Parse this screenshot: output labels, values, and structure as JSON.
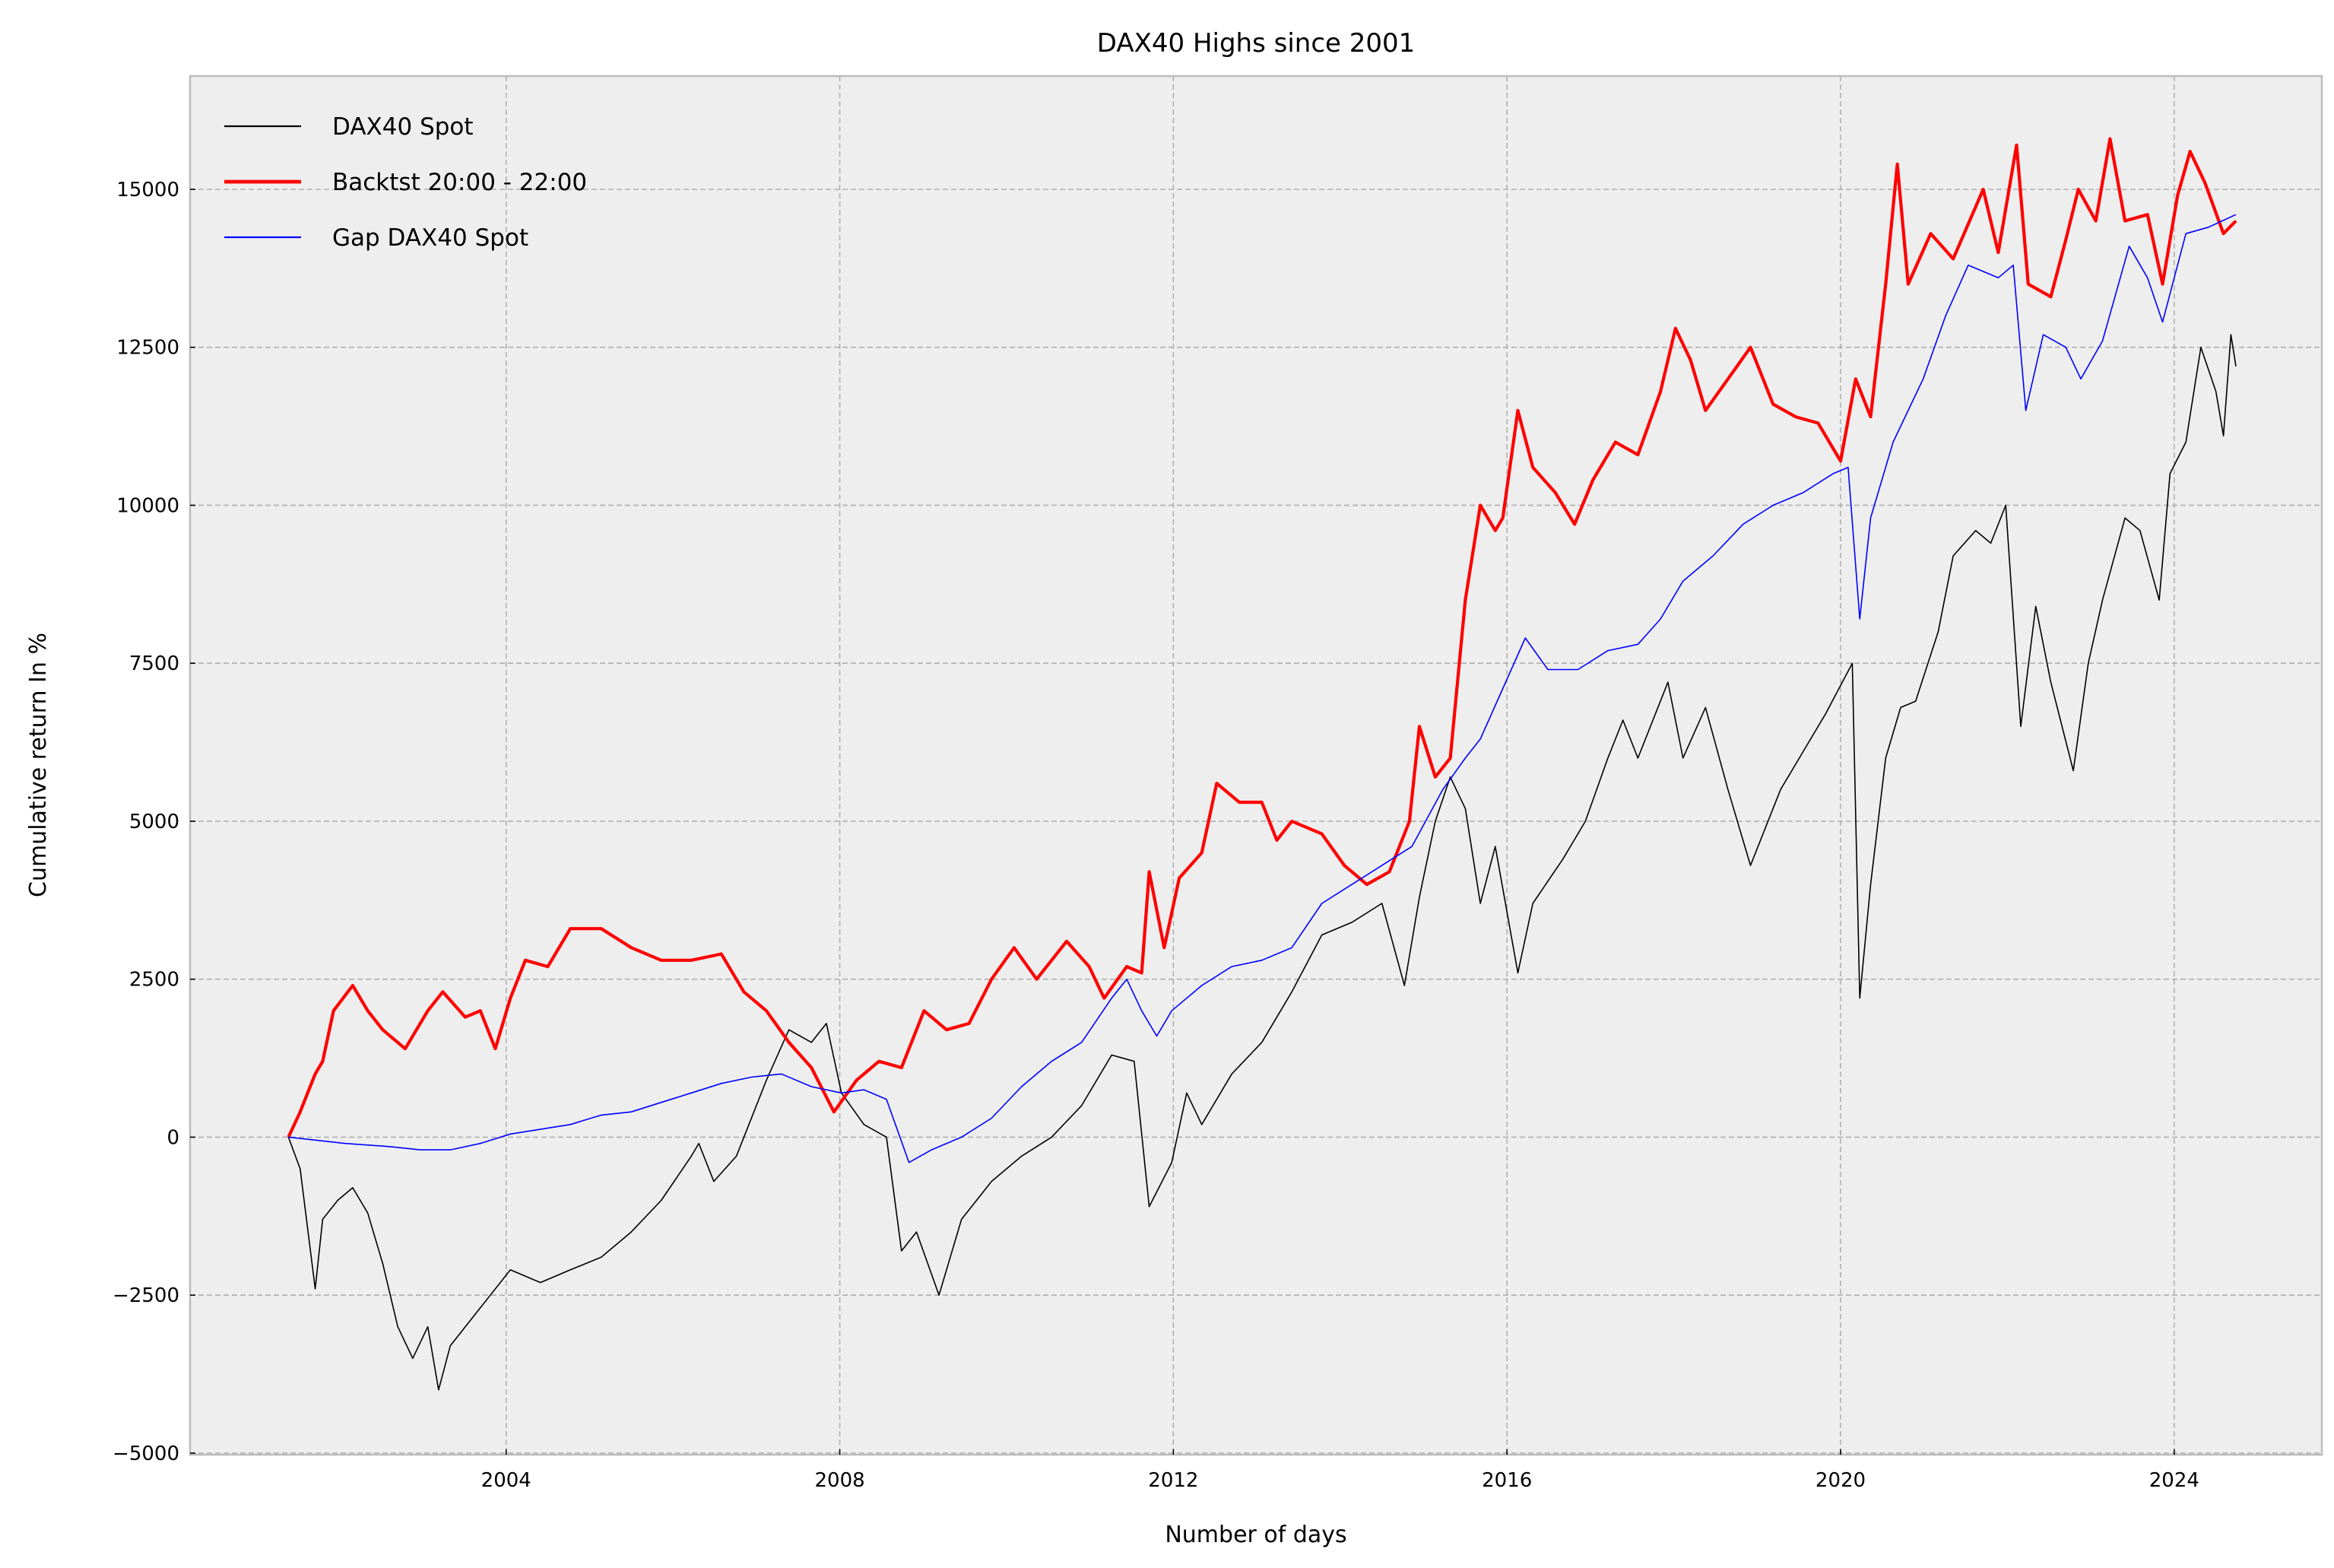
{
  "chart_data": {
    "type": "line",
    "title": "DAX40 Highs since 2001",
    "xlabel": "Number of days",
    "ylabel": "Cumulative return In %",
    "xlim": [
      2000.21,
      2025.77
    ],
    "ylim": [
      -5025,
      16793
    ],
    "xticks": [
      2004,
      2008,
      2012,
      2016,
      2020,
      2024
    ],
    "xtick_labels": [
      "2004",
      "2008",
      "2012",
      "2016",
      "2020",
      "2024"
    ],
    "yticks": [
      -5000,
      -2500,
      0,
      2500,
      5000,
      7500,
      10000,
      12500,
      15000
    ],
    "ytick_labels": [
      "−5000",
      "−2500",
      "0",
      "2500",
      "5000",
      "7500",
      "10000",
      "12500",
      "15000"
    ],
    "grid": true,
    "legend_position": "top-left",
    "series": [
      {
        "name": "DAX40 Spot",
        "color": "#000000",
        "points": [
          [
            2001.39,
            0
          ],
          [
            2001.53,
            -500
          ],
          [
            2001.71,
            -2400
          ],
          [
            2001.8,
            -1300
          ],
          [
            2001.98,
            -1000
          ],
          [
            2002.16,
            -800
          ],
          [
            2002.34,
            -1200
          ],
          [
            2002.52,
            -2000
          ],
          [
            2002.7,
            -3000
          ],
          [
            2002.88,
            -3500
          ],
          [
            2003.06,
            -3000
          ],
          [
            2003.19,
            -4000
          ],
          [
            2003.33,
            -3300
          ],
          [
            2003.69,
            -2700
          ],
          [
            2004.05,
            -2100
          ],
          [
            2004.41,
            -2300
          ],
          [
            2004.77,
            -2100
          ],
          [
            2005.14,
            -1900
          ],
          [
            2005.5,
            -1500
          ],
          [
            2005.86,
            -1000
          ],
          [
            2006.22,
            -300
          ],
          [
            2006.31,
            -100
          ],
          [
            2006.49,
            -700
          ],
          [
            2006.76,
            -300
          ],
          [
            2007.12,
            900
          ],
          [
            2007.39,
            1700
          ],
          [
            2007.66,
            1500
          ],
          [
            2007.84,
            1800
          ],
          [
            2008.02,
            700
          ],
          [
            2008.29,
            200
          ],
          [
            2008.56,
            0
          ],
          [
            2008.74,
            -1800
          ],
          [
            2008.92,
            -1500
          ],
          [
            2009.19,
            -2500
          ],
          [
            2009.46,
            -1300
          ],
          [
            2009.82,
            -700
          ],
          [
            2010.18,
            -300
          ],
          [
            2010.54,
            0
          ],
          [
            2010.9,
            500
          ],
          [
            2011.26,
            1300
          ],
          [
            2011.53,
            1200
          ],
          [
            2011.71,
            -1100
          ],
          [
            2011.98,
            -400
          ],
          [
            2012.16,
            700
          ],
          [
            2012.34,
            200
          ],
          [
            2012.7,
            1000
          ],
          [
            2013.06,
            1500
          ],
          [
            2013.42,
            2300
          ],
          [
            2013.78,
            3200
          ],
          [
            2014.14,
            3400
          ],
          [
            2014.5,
            3700
          ],
          [
            2014.77,
            2400
          ],
          [
            2014.95,
            3800
          ],
          [
            2015.14,
            5000
          ],
          [
            2015.32,
            5700
          ],
          [
            2015.5,
            5200
          ],
          [
            2015.68,
            3700
          ],
          [
            2015.86,
            4600
          ],
          [
            2016.13,
            2600
          ],
          [
            2016.31,
            3700
          ],
          [
            2016.67,
            4400
          ],
          [
            2016.94,
            5000
          ],
          [
            2017.21,
            6000
          ],
          [
            2017.39,
            6600
          ],
          [
            2017.57,
            6000
          ],
          [
            2017.93,
            7200
          ],
          [
            2018.11,
            6000
          ],
          [
            2018.38,
            6800
          ],
          [
            2018.65,
            5500
          ],
          [
            2018.92,
            4300
          ],
          [
            2019.28,
            5500
          ],
          [
            2019.55,
            6100
          ],
          [
            2019.82,
            6700
          ],
          [
            2020.14,
            7500
          ],
          [
            2020.23,
            2200
          ],
          [
            2020.36,
            4000
          ],
          [
            2020.54,
            6000
          ],
          [
            2020.72,
            6800
          ],
          [
            2020.9,
            6900
          ],
          [
            2021.17,
            8000
          ],
          [
            2021.35,
            9200
          ],
          [
            2021.62,
            9600
          ],
          [
            2021.8,
            9400
          ],
          [
            2021.98,
            10000
          ],
          [
            2022.16,
            6500
          ],
          [
            2022.34,
            8400
          ],
          [
            2022.52,
            7200
          ],
          [
            2022.79,
            5800
          ],
          [
            2022.97,
            7500
          ],
          [
            2023.14,
            8500
          ],
          [
            2023.41,
            9800
          ],
          [
            2023.59,
            9600
          ],
          [
            2023.82,
            8500
          ],
          [
            2023.95,
            10500
          ],
          [
            2024.14,
            11000
          ],
          [
            2024.32,
            12500
          ],
          [
            2024.5,
            11800
          ],
          [
            2024.59,
            11100
          ],
          [
            2024.68,
            12700
          ],
          [
            2024.74,
            12200
          ]
        ]
      },
      {
        "name": "Backtst 20:00 - 22:00",
        "color": "#ff0000",
        "points": [
          [
            2001.39,
            0
          ],
          [
            2001.53,
            400
          ],
          [
            2001.71,
            1000
          ],
          [
            2001.8,
            1200
          ],
          [
            2001.93,
            2000
          ],
          [
            2002.16,
            2400
          ],
          [
            2002.34,
            2000
          ],
          [
            2002.52,
            1700
          ],
          [
            2002.79,
            1400
          ],
          [
            2003.06,
            2000
          ],
          [
            2003.24,
            2300
          ],
          [
            2003.51,
            1900
          ],
          [
            2003.69,
            2000
          ],
          [
            2003.87,
            1400
          ],
          [
            2004.05,
            2200
          ],
          [
            2004.23,
            2800
          ],
          [
            2004.5,
            2700
          ],
          [
            2004.77,
            3300
          ],
          [
            2005.14,
            3300
          ],
          [
            2005.5,
            3000
          ],
          [
            2005.86,
            2800
          ],
          [
            2006.22,
            2800
          ],
          [
            2006.58,
            2900
          ],
          [
            2006.85,
            2300
          ],
          [
            2007.12,
            2000
          ],
          [
            2007.39,
            1500
          ],
          [
            2007.66,
            1100
          ],
          [
            2007.93,
            400
          ],
          [
            2008.2,
            900
          ],
          [
            2008.47,
            1200
          ],
          [
            2008.74,
            1100
          ],
          [
            2009.01,
            2000
          ],
          [
            2009.28,
            1700
          ],
          [
            2009.55,
            1800
          ],
          [
            2009.82,
            2500
          ],
          [
            2010.09,
            3000
          ],
          [
            2010.36,
            2500
          ],
          [
            2010.72,
            3100
          ],
          [
            2010.99,
            2700
          ],
          [
            2011.17,
            2200
          ],
          [
            2011.44,
            2700
          ],
          [
            2011.62,
            2600
          ],
          [
            2011.71,
            4200
          ],
          [
            2011.89,
            3000
          ],
          [
            2012.07,
            4100
          ],
          [
            2012.34,
            4500
          ],
          [
            2012.52,
            5600
          ],
          [
            2012.79,
            5300
          ],
          [
            2013.06,
            5300
          ],
          [
            2013.24,
            4700
          ],
          [
            2013.42,
            5000
          ],
          [
            2013.78,
            4800
          ],
          [
            2014.05,
            4300
          ],
          [
            2014.32,
            4000
          ],
          [
            2014.59,
            4200
          ],
          [
            2014.83,
            5000
          ],
          [
            2014.95,
            6500
          ],
          [
            2015.14,
            5700
          ],
          [
            2015.32,
            6000
          ],
          [
            2015.5,
            8500
          ],
          [
            2015.68,
            10000
          ],
          [
            2015.86,
            9600
          ],
          [
            2015.95,
            9800
          ],
          [
            2016.13,
            11500
          ],
          [
            2016.31,
            10600
          ],
          [
            2016.58,
            10200
          ],
          [
            2016.81,
            9700
          ],
          [
            2017.03,
            10400
          ],
          [
            2017.3,
            11000
          ],
          [
            2017.57,
            10800
          ],
          [
            2017.84,
            11800
          ],
          [
            2018.02,
            12800
          ],
          [
            2018.2,
            12300
          ],
          [
            2018.38,
            11500
          ],
          [
            2018.65,
            12000
          ],
          [
            2018.92,
            12500
          ],
          [
            2019.19,
            11600
          ],
          [
            2019.46,
            11400
          ],
          [
            2019.73,
            11300
          ],
          [
            2020.0,
            10700
          ],
          [
            2020.18,
            12000
          ],
          [
            2020.36,
            11400
          ],
          [
            2020.54,
            13500
          ],
          [
            2020.68,
            15400
          ],
          [
            2020.81,
            13500
          ],
          [
            2021.08,
            14300
          ],
          [
            2021.35,
            13900
          ],
          [
            2021.71,
            15000
          ],
          [
            2021.89,
            14000
          ],
          [
            2022.11,
            15700
          ],
          [
            2022.25,
            13500
          ],
          [
            2022.52,
            13300
          ],
          [
            2022.7,
            14200
          ],
          [
            2022.85,
            15000
          ],
          [
            2023.06,
            14500
          ],
          [
            2023.23,
            15800
          ],
          [
            2023.41,
            14500
          ],
          [
            2023.68,
            14600
          ],
          [
            2023.86,
            13500
          ],
          [
            2024.04,
            14900
          ],
          [
            2024.19,
            15600
          ],
          [
            2024.37,
            15100
          ],
          [
            2024.59,
            14300
          ],
          [
            2024.74,
            14500
          ]
        ]
      },
      {
        "name": "Gap DAX40 Spot",
        "color": "#0000ff",
        "points": [
          [
            2001.39,
            0
          ],
          [
            2002.07,
            -100
          ],
          [
            2002.61,
            -150
          ],
          [
            2002.97,
            -200
          ],
          [
            2003.33,
            -200
          ],
          [
            2003.69,
            -100
          ],
          [
            2004.05,
            50
          ],
          [
            2004.77,
            200
          ],
          [
            2005.14,
            350
          ],
          [
            2005.5,
            400
          ],
          [
            2005.86,
            550
          ],
          [
            2006.22,
            700
          ],
          [
            2006.58,
            850
          ],
          [
            2006.94,
            950
          ],
          [
            2007.3,
            1000
          ],
          [
            2007.66,
            800
          ],
          [
            2008.02,
            700
          ],
          [
            2008.29,
            750
          ],
          [
            2008.56,
            600
          ],
          [
            2008.83,
            -400
          ],
          [
            2009.1,
            -200
          ],
          [
            2009.46,
            0
          ],
          [
            2009.82,
            300
          ],
          [
            2010.18,
            800
          ],
          [
            2010.54,
            1200
          ],
          [
            2010.9,
            1500
          ],
          [
            2011.26,
            2200
          ],
          [
            2011.44,
            2500
          ],
          [
            2011.62,
            2000
          ],
          [
            2011.8,
            1600
          ],
          [
            2011.98,
            2000
          ],
          [
            2012.34,
            2400
          ],
          [
            2012.7,
            2700
          ],
          [
            2013.06,
            2800
          ],
          [
            2013.42,
            3000
          ],
          [
            2013.78,
            3700
          ],
          [
            2014.14,
            4000
          ],
          [
            2014.5,
            4300
          ],
          [
            2014.86,
            4600
          ],
          [
            2015.23,
            5500
          ],
          [
            2015.5,
            6000
          ],
          [
            2015.68,
            6300
          ],
          [
            2015.95,
            7100
          ],
          [
            2016.22,
            7900
          ],
          [
            2016.49,
            7400
          ],
          [
            2016.85,
            7400
          ],
          [
            2017.21,
            7700
          ],
          [
            2017.57,
            7800
          ],
          [
            2017.84,
            8200
          ],
          [
            2018.11,
            8800
          ],
          [
            2018.47,
            9200
          ],
          [
            2018.83,
            9700
          ],
          [
            2019.19,
            10000
          ],
          [
            2019.55,
            10200
          ],
          [
            2019.91,
            10500
          ],
          [
            2020.09,
            10600
          ],
          [
            2020.23,
            8200
          ],
          [
            2020.36,
            9800
          ],
          [
            2020.63,
            11000
          ],
          [
            2020.99,
            12000
          ],
          [
            2021.26,
            13000
          ],
          [
            2021.53,
            13800
          ],
          [
            2021.89,
            13600
          ],
          [
            2022.07,
            13800
          ],
          [
            2022.22,
            11500
          ],
          [
            2022.43,
            12700
          ],
          [
            2022.7,
            12500
          ],
          [
            2022.88,
            12000
          ],
          [
            2023.14,
            12600
          ],
          [
            2023.46,
            14100
          ],
          [
            2023.68,
            13600
          ],
          [
            2023.86,
            12900
          ],
          [
            2024.14,
            14300
          ],
          [
            2024.41,
            14400
          ],
          [
            2024.74,
            14600
          ]
        ]
      }
    ]
  }
}
